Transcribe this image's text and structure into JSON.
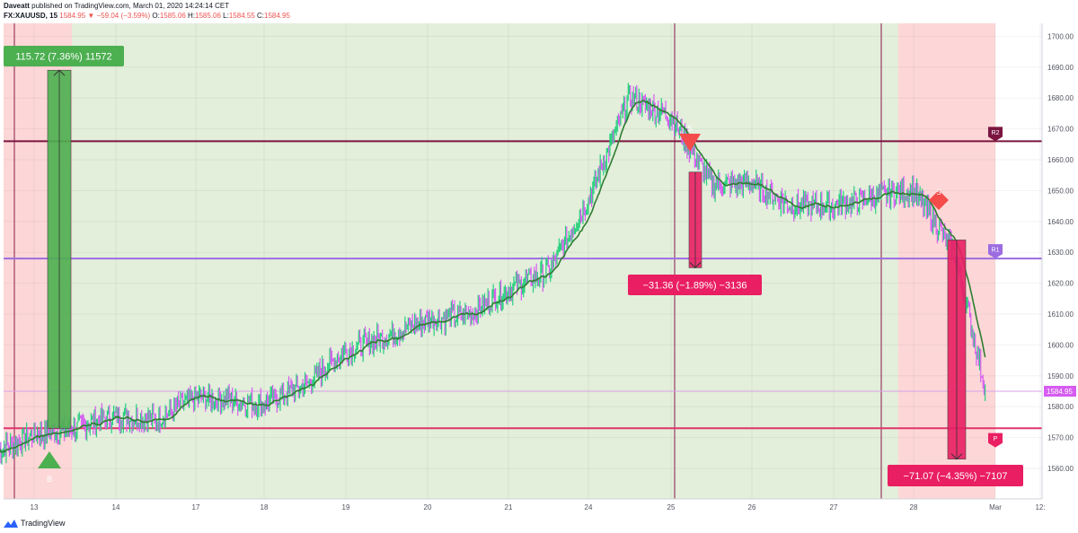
{
  "header": {
    "author": "Daveatt",
    "published_text": "published on TradingView.com, March 01, 2020 14:24:14 CET",
    "symbol": "FX:XAUUSD, 15",
    "last": "1584.95",
    "change": "−59.04 (−3.59%)",
    "ohlc": {
      "o_label": "O:",
      "o": "1585.06",
      "h_label": "H:",
      "h": "1585.06",
      "l_label": "L:",
      "l": "1584.55",
      "c_label": "C:",
      "c": "1584.95"
    }
  },
  "brand": "TradingView",
  "colors": {
    "bull_candle": "#26d07c",
    "bear_candle": "#d65cf0",
    "moving_average": "#2e7d32",
    "long_zone": "#e3eedb",
    "short_zone": "#fdd7d7",
    "r2_line": "#7b1540",
    "r1_line": "#9c6ce0",
    "support_line": "#e0356b",
    "long_box": "#4caf50",
    "short_box": "#e91e63",
    "last_price_line": "#d8a0e8"
  },
  "chart_data": {
    "type": "line",
    "title": "",
    "xlabel": "",
    "ylabel": "",
    "x_tick_labels": [
      "13",
      "14",
      "17",
      "18",
      "19",
      "20",
      "21",
      "24",
      "25",
      "26",
      "27",
      "28",
      "Mar",
      "12:"
    ],
    "y_ticks": [
      1560,
      1570,
      1580,
      1590,
      1600,
      1610,
      1620,
      1630,
      1640,
      1650,
      1660,
      1670,
      1680,
      1690,
      1700
    ],
    "y_tick_labels": [
      "1560.00",
      "1570.00",
      "1580.00",
      "1590.00",
      "1600.00",
      "1610.00",
      "1620.00",
      "1630.00",
      "1640.00",
      "1650.00",
      "1660.00",
      "1670.00",
      "1680.00",
      "1690.00",
      "1700.00"
    ],
    "ylim": [
      1557,
      1703
    ],
    "xlim": [
      "Feb 12 18:00",
      "Mar 2 12:00"
    ],
    "grid": true,
    "series": [
      {
        "x": [
          "Feb 12 12:00",
          "Feb 13 00:00",
          "Feb 13 12:00",
          "Feb 14 00:00",
          "Feb 14 12:00",
          "Feb 17 00:00",
          "Feb 17 12:00",
          "Feb 18 00:00",
          "Feb 18 12:00",
          "Feb 19 00:00",
          "Feb 19 12:00",
          "Feb 20 00:00",
          "Feb 20 12:00",
          "Feb 21 00:00",
          "Feb 21 12:00",
          "Feb 24 00:00",
          "Feb 24 12:00",
          "Feb 25 00:00",
          "Feb 25 12:00",
          "Feb 26 00:00",
          "Feb 26 12:00",
          "Feb 27 00:00",
          "Feb 27 12:00",
          "Feb 28 00:00",
          "Feb 28 12:00",
          "Feb 28 21:00"
        ],
        "values": [
          1566,
          1571,
          1573,
          1577,
          1576,
          1583,
          1582,
          1581,
          1587,
          1598,
          1603,
          1608,
          1610,
          1618,
          1624,
          1647,
          1680,
          1674,
          1652,
          1652,
          1645,
          1645,
          1648,
          1650,
          1630,
          1586
        ]
      }
    ],
    "price_lines": [
      {
        "label": "R2",
        "value": 1666
      },
      {
        "label": "R1",
        "value": 1628
      },
      {
        "label": "",
        "value": 1573
      },
      {
        "label": "",
        "value": 1585
      }
    ],
    "last_price_label": "1584.95",
    "measures": [
      {
        "label": "115.72 (7.36%) 11572",
        "from": 1573,
        "to": 1689
      },
      {
        "label": "−31.36 (−1.89%) −3136",
        "from": 1656,
        "to": 1625
      },
      {
        "label": "−71.07 (−4.35%) −7107",
        "from": 1634,
        "to": 1563
      }
    ],
    "signals": [
      {
        "type": "buy",
        "label": "B"
      },
      {
        "type": "sell",
        "label": "S"
      },
      {
        "type": "sell",
        "label": "S"
      }
    ],
    "pivot_labels": [
      "R2",
      "R1",
      "P"
    ]
  }
}
